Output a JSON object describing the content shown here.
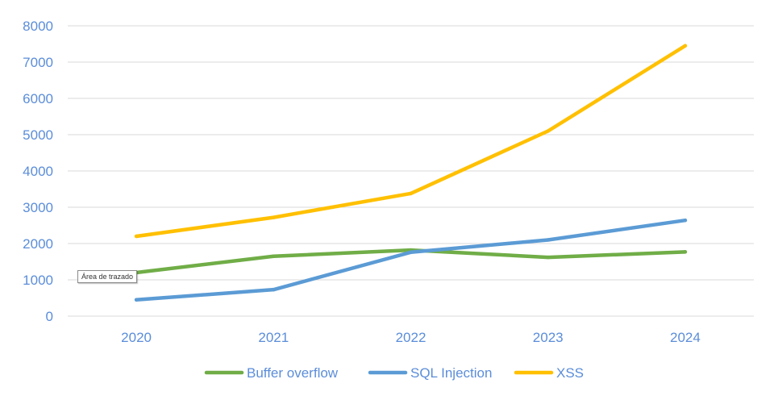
{
  "chart_data": {
    "type": "line",
    "title": "",
    "xlabel": "",
    "ylabel": "",
    "categories": [
      "2020",
      "2021",
      "2022",
      "2023",
      "2024"
    ],
    "ylim": [
      0,
      8000
    ],
    "yticks": [
      0,
      1000,
      2000,
      3000,
      4000,
      5000,
      6000,
      7000,
      8000
    ],
    "grid": true,
    "legend_position": "bottom",
    "series": [
      {
        "name": "Buffer overflow",
        "color": "#70AD47",
        "values": [
          1200,
          1650,
          1820,
          1620,
          1770
        ]
      },
      {
        "name": "SQL Injection",
        "color": "#5B9BD5",
        "values": [
          450,
          730,
          1760,
          2100,
          2640
        ]
      },
      {
        "name": "XSS",
        "color": "#FFC000",
        "values": [
          2200,
          2720,
          3380,
          5100,
          7450
        ]
      }
    ],
    "axis_text_color": "#5B8DD9",
    "gridline_color": "#D9D9D9"
  },
  "tooltip": {
    "text": "Área de trazado"
  }
}
